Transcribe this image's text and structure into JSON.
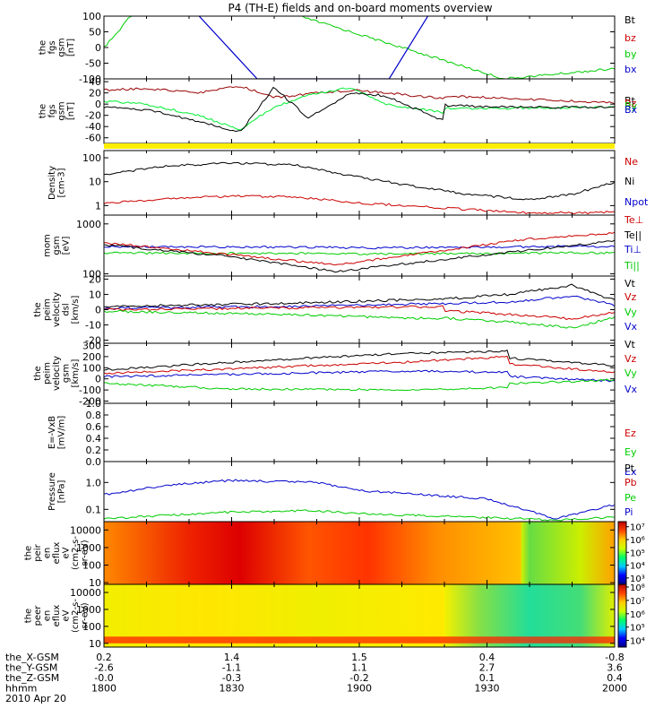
{
  "title": "P4 (TH-E) fields and on-board moments overview",
  "footer": {
    "rows": [
      {
        "label": "the_X-GSM",
        "values": [
          "0.2",
          "1.4",
          "1.5",
          "0.4",
          "-0.8"
        ]
      },
      {
        "label": "the_Y-GSM",
        "values": [
          "-2.6",
          "-1.1",
          "1.1",
          "2.7",
          "3.6"
        ]
      },
      {
        "label": "the_Z-GSM",
        "values": [
          "-0.0",
          "-0.3",
          "-0.2",
          "0.1",
          "0.4"
        ]
      },
      {
        "label": "hhmm",
        "values": [
          "1800",
          "1830",
          "1900",
          "1930",
          "2000"
        ]
      }
    ],
    "date": "2010 Apr 20"
  },
  "chart_data": [
    {
      "type": "line",
      "ylabel_lines": [
        "the",
        "fgs",
        "gsm",
        "[nT]"
      ],
      "yticks": [
        "100",
        "50",
        "0",
        "-50",
        "-100"
      ],
      "ylim": [
        -100,
        100
      ],
      "legend": [
        {
          "name": "Bt",
          "color": "#000000"
        },
        {
          "name": "bz",
          "color": "#cc0000"
        },
        {
          "name": "by",
          "color": "#00cc00"
        },
        {
          "name": "bx",
          "color": "#0000cc"
        }
      ],
      "series": [
        {
          "name": "by",
          "color": "#00cc00",
          "x": [
            1800,
            1804,
            1806,
            1820,
            1846,
            1934,
            1950,
            1970,
            1990,
            2000
          ],
          "values": [
            0,
            60,
            100,
            180,
            100,
            -100,
            -80,
            -55,
            -35,
            -28
          ]
        },
        {
          "name": "bx",
          "color": "#0000cc",
          "x": [
            1821,
            1836,
            1867,
            1877
          ],
          "values": [
            120,
            -100,
            -100,
            120
          ]
        }
      ]
    },
    {
      "type": "line",
      "ylabel_lines": [
        "the",
        "fgs",
        "gsm",
        "[nT]"
      ],
      "yticks": [
        "40",
        "20",
        "0",
        "-20",
        "-40",
        "-60"
      ],
      "ylim": [
        -70,
        45
      ],
      "legend": [
        {
          "name": "Bt",
          "color": "#000000"
        },
        {
          "name": "Bz",
          "color": "#cc0000"
        },
        {
          "name": "By",
          "color": "#00cc00"
        },
        {
          "name": "Bx",
          "color": "#0000cc"
        }
      ],
      "series": [
        {
          "name": "Bt",
          "color": "#990000",
          "x": [
            1800,
            1810,
            1822,
            1832,
            1840,
            1848,
            1858,
            1866,
            1880,
            1900,
            1930,
            1960,
            2000
          ],
          "values": [
            25,
            28,
            20,
            32,
            12,
            18,
            25,
            20,
            10,
            18,
            12,
            2,
            -2
          ]
        },
        {
          "name": "By",
          "color": "#00ee33",
          "x": [
            1800,
            1810,
            1822,
            1832,
            1840,
            1848,
            1858,
            1866,
            1880,
            1900,
            1930,
            1960,
            2000
          ],
          "values": [
            5,
            0,
            -20,
            -45,
            -5,
            15,
            30,
            0,
            -15,
            -5,
            -8,
            -5,
            -4
          ]
        },
        {
          "name": "Bx",
          "color": "#000000",
          "x": [
            1800,
            1810,
            1822,
            1832,
            1840,
            1848,
            1858,
            1866,
            1880,
            1900,
            1930,
            1960,
            2000
          ],
          "values": [
            -5,
            -10,
            -30,
            -50,
            30,
            -25,
            20,
            15,
            -30,
            5,
            -5,
            -6,
            -4
          ]
        }
      ]
    },
    {
      "type": "line",
      "ylabel_lines": [
        "Density",
        "[cm-3]"
      ],
      "yticks": [
        "100",
        "10",
        "1"
      ],
      "yscale": "log",
      "ylim": [
        0.4,
        200
      ],
      "legend": [
        {
          "name": "Ne",
          "color": "#cc0000"
        },
        {
          "name": "Ni",
          "color": "#000000"
        },
        {
          "name": "Npot",
          "color": "#0000cc"
        }
      ],
      "series": [
        {
          "name": "Ni",
          "color": "#000000",
          "x": [
            1800,
            1815,
            1830,
            1845,
            1900,
            1925,
            1940,
            1950,
            1970,
            2000
          ],
          "values": [
            20,
            45,
            60,
            50,
            15,
            3,
            1.8,
            3,
            30,
            150
          ]
        },
        {
          "name": "Ne",
          "color": "#cc0000",
          "x": [
            1800,
            1815,
            1830,
            1845,
            1900,
            1925,
            1940,
            1955,
            1975,
            2000
          ],
          "values": [
            1.2,
            2,
            2.5,
            2.3,
            1.3,
            0.7,
            0.5,
            0.5,
            0.9,
            2.5
          ]
        }
      ]
    },
    {
      "type": "line",
      "ylabel_lines": [
        "mom",
        "gsm",
        "[eV]"
      ],
      "yticks": [
        "1000",
        "100"
      ],
      "yscale": "log",
      "ylim": [
        90,
        1500
      ],
      "legend": [
        {
          "name": "Te⊥",
          "color": "#cc0000"
        },
        {
          "name": "Te||",
          "color": "#000000"
        },
        {
          "name": "Ti⊥",
          "color": "#0000cc"
        },
        {
          "name": "Ti||",
          "color": "#00cc00"
        }
      ],
      "series": [
        {
          "name": "Ti⊥",
          "color": "#0000cc",
          "x": [
            1800,
            1850,
            1900,
            1930,
            1950,
            2000
          ],
          "values": [
            350,
            340,
            330,
            340,
            360,
            350
          ]
        },
        {
          "name": "Ti||",
          "color": "#00cc00",
          "x": [
            1800,
            1850,
            1900,
            1930,
            1950,
            2000
          ],
          "values": [
            260,
            255,
            250,
            255,
            265,
            260
          ]
        },
        {
          "name": "Te⊥",
          "color": "#cc0000",
          "x": [
            1800,
            1830,
            1855,
            1905,
            1940,
            1960,
            2000
          ],
          "values": [
            420,
            240,
            150,
            200,
            500,
            650,
            520
          ]
        },
        {
          "name": "Te||",
          "color": "#000000",
          "x": [
            1800,
            1830,
            1855,
            1905,
            1940,
            1960,
            2000
          ],
          "values": [
            380,
            220,
            110,
            140,
            300,
            450,
            420
          ]
        }
      ]
    },
    {
      "type": "line",
      "ylabel_lines": [
        "the",
        "peim",
        "velocity",
        "dsl",
        "[km/s]"
      ],
      "yticks": [
        "20",
        "10",
        "0",
        "-10",
        "-20"
      ],
      "ylim": [
        -22,
        22
      ],
      "legend": [
        {
          "name": "Vt",
          "color": "#000000"
        },
        {
          "name": "Vz",
          "color": "#cc0000"
        },
        {
          "name": "Vy",
          "color": "#00cc00"
        },
        {
          "name": "Vx",
          "color": "#0000cc"
        }
      ],
      "series": [
        {
          "name": "Vt",
          "color": "#000000",
          "x": [
            1800,
            1840,
            1880,
            1910,
            1935,
            1950,
            1960,
            2000
          ],
          "values": [
            2,
            4,
            7,
            5,
            10,
            16,
            6,
            3
          ]
        },
        {
          "name": "Vx",
          "color": "#0000cc",
          "x": [
            1800,
            1840,
            1880,
            1910,
            1935,
            1950,
            1960,
            2000
          ],
          "values": [
            1,
            2,
            4,
            3,
            5,
            9,
            3,
            1
          ]
        },
        {
          "name": "Vz",
          "color": "#cc0000",
          "x": [
            1800,
            1840,
            1880,
            1910,
            1935,
            1950,
            1960,
            2000
          ],
          "values": [
            0,
            1,
            2,
            1,
            -3,
            -6,
            -2,
            0
          ]
        },
        {
          "name": "Vy",
          "color": "#00cc00",
          "x": [
            1800,
            1840,
            1880,
            1910,
            1935,
            1950,
            1960,
            2000
          ],
          "values": [
            -1,
            -3,
            -6,
            -4,
            -8,
            -12,
            -5,
            -2
          ]
        }
      ]
    },
    {
      "type": "line",
      "ylabel_lines": [
        "the",
        "peim",
        "velocity",
        "gsm",
        "[km/s]"
      ],
      "yticks": [
        "300",
        "200",
        "100",
        "0",
        "-100",
        "-200"
      ],
      "ylim": [
        -220,
        320
      ],
      "legend": [
        {
          "name": "Vt",
          "color": "#000000"
        },
        {
          "name": "Vz",
          "color": "#cc0000"
        },
        {
          "name": "Vy",
          "color": "#00cc00"
        },
        {
          "name": "Vx",
          "color": "#0000cc"
        }
      ],
      "series": [
        {
          "name": "Vt",
          "color": "#000000",
          "x": [
            1800,
            1830,
            1870,
            1895,
            1930,
            1960,
            2000
          ],
          "values": [
            80,
            150,
            230,
            250,
            200,
            120,
            80
          ]
        },
        {
          "name": "Vz",
          "color": "#cc0000",
          "x": [
            1800,
            1830,
            1870,
            1895,
            1930,
            1960,
            2000
          ],
          "values": [
            50,
            90,
            150,
            200,
            150,
            60,
            40
          ]
        },
        {
          "name": "Vx",
          "color": "#0000cc",
          "x": [
            1800,
            1830,
            1870,
            1895,
            1930,
            1960,
            2000
          ],
          "values": [
            20,
            40,
            70,
            60,
            30,
            -20,
            0
          ]
        },
        {
          "name": "Vy",
          "color": "#00cc00",
          "x": [
            1800,
            1830,
            1870,
            1895,
            1930,
            1960,
            2000
          ],
          "values": [
            -40,
            -90,
            -100,
            -80,
            -50,
            -10,
            -20
          ]
        }
      ]
    },
    {
      "type": "line",
      "ylabel_lines": [
        "E=-VxB",
        "[mV/m]"
      ],
      "yticks": [
        "1.0",
        "0.8",
        "0.6",
        "0.4",
        "0.2",
        "0.0"
      ],
      "ylim": [
        0,
        1
      ],
      "legend": [
        {
          "name": "Ez",
          "color": "#cc0000"
        },
        {
          "name": "Ey",
          "color": "#00cc00"
        },
        {
          "name": "Ex",
          "color": "#0000cc"
        }
      ],
      "series": []
    },
    {
      "type": "line",
      "ylabel_lines": [
        "Pressure",
        "[nPa]"
      ],
      "yticks": [
        "1.0",
        "0.1"
      ],
      "yscale": "log",
      "ylim": [
        0.035,
        6
      ],
      "legend": [
        {
          "name": "Pt",
          "color": "#000000"
        },
        {
          "name": "Pb",
          "color": "#cc0000"
        },
        {
          "name": "Pe",
          "color": "#00cc00"
        },
        {
          "name": "Pi",
          "color": "#0000cc"
        }
      ],
      "series": [
        {
          "name": "Pi",
          "color": "#0000cc",
          "x": [
            1800,
            1815,
            1830,
            1850,
            1900,
            1930,
            1946,
            1960,
            1980,
            2000
          ],
          "values": [
            0.35,
            0.8,
            1.2,
            1.0,
            0.5,
            0.25,
            0.045,
            0.15,
            1.0,
            3.5
          ]
        },
        {
          "name": "Pe",
          "color": "#00cc00",
          "x": [
            1800,
            1830,
            1850,
            1900,
            1930,
            1946,
            1960,
            1980,
            2000
          ],
          "values": [
            0.045,
            0.08,
            0.09,
            0.07,
            0.05,
            0.04,
            0.05,
            0.1,
            0.2
          ]
        }
      ]
    },
    {
      "type": "heatmap",
      "ylabel_lines": [
        "the",
        "peir",
        "en",
        "eflux",
        "eV",
        "(cm2-s-",
        "sr-eV)"
      ],
      "yticks": [
        "10000",
        "1000",
        "100",
        "10"
      ],
      "yscale": "log",
      "ylim": [
        8,
        30000
      ],
      "colorbar": {
        "ticks": [
          "10⁷",
          "10⁶",
          "10⁵",
          "10⁴",
          "10³"
        ],
        "range": [
          2.5,
          7.4
        ],
        "scale": "log"
      },
      "columns": [
        {
          "x": 1800,
          "color": "#ff8800"
        },
        {
          "x": 1820,
          "color": "#ee2200"
        },
        {
          "x": 1832,
          "color": "#dd0000"
        },
        {
          "x": 1848,
          "color": "#ff5500"
        },
        {
          "x": 1862,
          "color": "#ff3300"
        },
        {
          "x": 1878,
          "color": "#ff8c00"
        },
        {
          "x": 1898,
          "color": "#ffc200"
        },
        {
          "x": 1915,
          "color": "#ffe000"
        },
        {
          "x": 1928,
          "color": "#d6f000"
        },
        {
          "x": 1940,
          "color": "#66dd44"
        },
        {
          "x": 1952,
          "color": "#ccee00"
        },
        {
          "x": 1965,
          "color": "#ffa000"
        },
        {
          "x": 1978,
          "color": "#ff3000"
        },
        {
          "x": 2000,
          "color": "#cc0000"
        }
      ]
    },
    {
      "type": "heatmap",
      "ylabel_lines": [
        "the",
        "peer",
        "en",
        "eflux",
        "eV",
        "(cm2-s-",
        "sr-eV)"
      ],
      "yticks": [
        "10000",
        "1000",
        "100",
        "10"
      ],
      "yscale": "log",
      "ylim": [
        6,
        30000
      ],
      "colorbar": {
        "ticks": [
          "10⁸",
          "10⁷",
          "10⁶",
          "10⁵",
          "10⁴"
        ],
        "range": [
          3.5,
          8.2
        ],
        "scale": "log"
      },
      "columns": [
        {
          "x": 1800,
          "color": "#f2ee00"
        },
        {
          "x": 1825,
          "color": "#ffe600"
        },
        {
          "x": 1850,
          "color": "#f0ef00"
        },
        {
          "x": 1880,
          "color": "#ffea00"
        },
        {
          "x": 1910,
          "color": "#f4f000"
        },
        {
          "x": 1928,
          "color": "#88e044"
        },
        {
          "x": 1940,
          "color": "#22dd99"
        },
        {
          "x": 1952,
          "color": "#44dd77"
        },
        {
          "x": 1965,
          "color": "#e0ee00"
        },
        {
          "x": 2000,
          "color": "#ffd600"
        }
      ],
      "band": {
        "ylim": [
          10,
          25
        ],
        "color": "#ff2200"
      }
    }
  ]
}
